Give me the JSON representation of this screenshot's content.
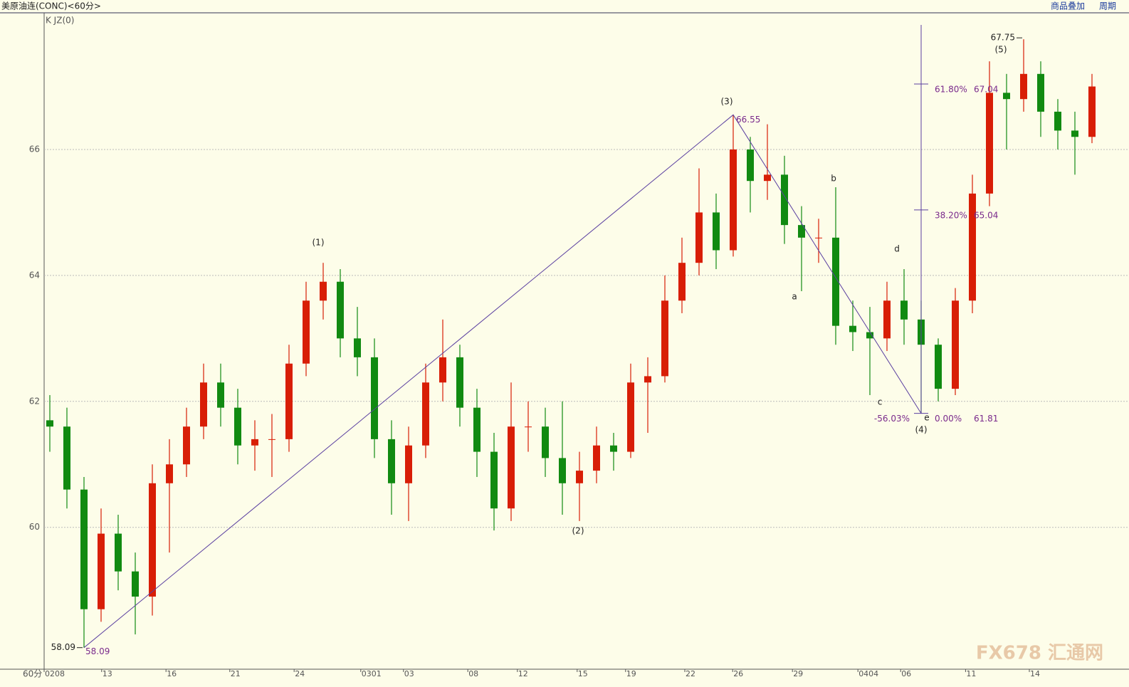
{
  "chart_data": {
    "type": "candlestick",
    "title": "美原油连(CONC)<60分>",
    "indicator": "K JZ(0)",
    "period_label": "60分",
    "toolbar": [
      "商品叠加",
      "周期"
    ],
    "watermark": "FX678 汇通网",
    "up_color": "#d81e06",
    "down_color": "#118a11",
    "xlim": [
      0,
      188
    ],
    "ylim": [
      57.77,
      68.17
    ],
    "yticks": [
      60,
      62,
      64,
      66
    ],
    "grid": true,
    "xticks": [
      {
        "value": 0,
        "label": "0208"
      },
      {
        "value": 10.1,
        "label": "13"
      },
      {
        "value": 21.4,
        "label": "16"
      },
      {
        "value": 32.6,
        "label": "21"
      },
      {
        "value": 43.9,
        "label": "24"
      },
      {
        "value": 55.6,
        "label": "0301"
      },
      {
        "value": 63.1,
        "label": "03"
      },
      {
        "value": 74.4,
        "label": "08"
      },
      {
        "value": 83.1,
        "label": "12"
      },
      {
        "value": 93.6,
        "label": "15"
      },
      {
        "value": 102.1,
        "label": "19"
      },
      {
        "value": 112.5,
        "label": "22"
      },
      {
        "value": 120.9,
        "label": "26"
      },
      {
        "value": 131.4,
        "label": "29"
      },
      {
        "value": 142.9,
        "label": "0404"
      },
      {
        "value": 150.4,
        "label": "06"
      },
      {
        "value": 161.8,
        "label": "11"
      },
      {
        "value": 173,
        "label": "14"
      }
    ],
    "x": [
      1,
      4,
      7,
      10,
      13,
      16,
      19,
      22,
      25,
      28,
      31,
      34,
      37,
      40,
      43,
      46,
      49,
      52,
      55,
      58,
      61,
      64,
      67,
      70,
      73,
      76,
      79,
      82,
      85,
      88,
      91,
      94,
      97,
      100,
      103,
      106,
      109,
      112,
      115,
      118,
      121,
      124,
      127,
      130,
      133,
      136,
      139,
      142,
      145,
      148,
      151,
      154,
      157,
      160,
      163,
      166,
      169,
      172,
      175,
      178,
      181,
      184
    ],
    "open": [
      61.7,
      61.6,
      60.6,
      58.7,
      59.9,
      59.3,
      58.9,
      60.7,
      61.0,
      61.6,
      62.3,
      61.9,
      61.3,
      61.4,
      61.4,
      62.6,
      63.6,
      63.9,
      63.0,
      62.7,
      61.4,
      60.7,
      61.3,
      62.3,
      62.7,
      61.9,
      61.2,
      60.3,
      61.6,
      61.6,
      61.1,
      60.7,
      60.9,
      61.3,
      61.2,
      62.3,
      62.4,
      63.6,
      64.2,
      65.0,
      64.4,
      66.0,
      65.5,
      65.6,
      64.8,
      64.6,
      64.6,
      63.2,
      63.1,
      63.0,
      63.6,
      63.3,
      62.9,
      62.2,
      63.6,
      65.3,
      66.9,
      66.8,
      67.2,
      66.6,
      66.3,
      66.2
    ],
    "high": [
      62.1,
      61.9,
      60.8,
      60.3,
      60.2,
      59.6,
      61.0,
      61.4,
      61.9,
      62.6,
      62.6,
      62.2,
      61.7,
      61.8,
      62.9,
      63.9,
      64.2,
      64.1,
      63.5,
      63.0,
      61.7,
      61.6,
      62.6,
      63.3,
      62.9,
      62.2,
      61.5,
      62.3,
      62.0,
      61.9,
      62.0,
      61.2,
      61.6,
      61.5,
      62.6,
      62.7,
      64.0,
      64.6,
      65.7,
      65.3,
      66.55,
      66.2,
      66.4,
      65.9,
      65.1,
      64.9,
      65.4,
      63.6,
      63.5,
      63.9,
      64.1,
      63.6,
      63.0,
      63.8,
      65.6,
      67.4,
      67.2,
      67.75,
      67.4,
      66.8,
      66.6,
      67.2
    ],
    "low": [
      61.2,
      60.3,
      58.09,
      58.5,
      59.0,
      58.3,
      58.6,
      59.6,
      60.8,
      61.4,
      61.6,
      61.0,
      60.9,
      60.8,
      61.2,
      62.4,
      63.3,
      62.7,
      62.4,
      61.1,
      60.2,
      60.1,
      61.1,
      62.0,
      61.6,
      60.8,
      59.95,
      60.1,
      61.2,
      60.8,
      60.2,
      60.1,
      60.7,
      60.9,
      61.1,
      61.5,
      62.3,
      63.4,
      64.0,
      64.1,
      64.3,
      65.0,
      65.2,
      64.5,
      63.75,
      64.2,
      62.9,
      62.8,
      62.1,
      62.8,
      62.9,
      61.81,
      62.0,
      62.1,
      63.4,
      65.1,
      66.0,
      66.6,
      66.2,
      66.0,
      65.6,
      66.1
    ],
    "close": [
      61.6,
      60.6,
      58.7,
      59.9,
      59.3,
      58.9,
      60.7,
      61.0,
      61.6,
      62.3,
      61.9,
      61.3,
      61.4,
      61.4,
      62.6,
      63.6,
      63.9,
      63.0,
      62.7,
      61.4,
      60.7,
      61.3,
      62.3,
      62.7,
      61.9,
      61.2,
      60.3,
      61.6,
      61.6,
      61.1,
      60.7,
      60.9,
      61.3,
      61.2,
      62.3,
      62.4,
      63.6,
      64.2,
      65.0,
      64.4,
      66.0,
      65.5,
      65.6,
      64.8,
      64.6,
      64.6,
      63.2,
      63.1,
      63.0,
      63.6,
      63.3,
      62.9,
      62.2,
      63.6,
      65.3,
      66.9,
      66.8,
      67.2,
      66.6,
      66.3,
      66.2,
      67.0
    ],
    "extreme_low": 58.09,
    "extreme_high": 67.75,
    "trendline": {
      "color": "#5a3fa0",
      "x": [
        7,
        121,
        154
      ],
      "values": [
        58.09,
        66.55,
        61.81
      ]
    },
    "fib": {
      "color": "#5a3fa0",
      "x": 154,
      "levels": [
        {
          "label": "61.80%",
          "value": 67.04
        },
        {
          "label": "38.20%",
          "value": 65.04
        },
        {
          "label": "0.00%",
          "value": 61.81
        }
      ],
      "extension_label": "-56.03%"
    },
    "wave_labels": [
      "(1)",
      "(2)",
      "(3)",
      "(4)",
      "(5)",
      "a",
      "b",
      "c",
      "d",
      "e"
    ]
  }
}
